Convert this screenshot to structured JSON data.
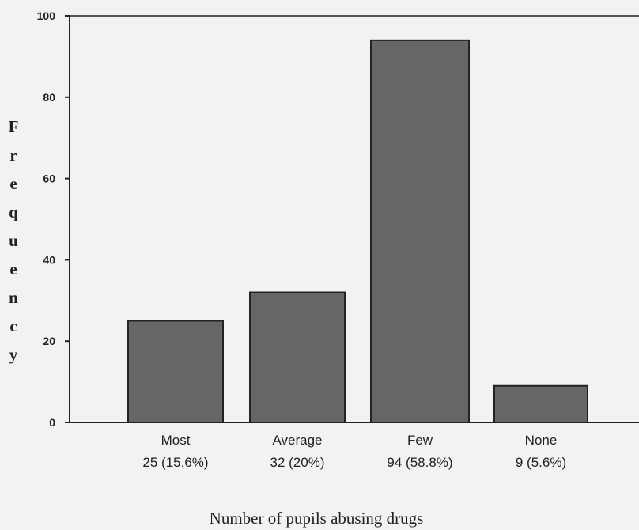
{
  "chart_data": {
    "type": "bar",
    "categories": [
      "Most",
      "Average",
      "Few",
      "None"
    ],
    "category_sublabels": [
      "25 (15.6%)",
      "32 (20%)",
      "94 (58.8%)",
      "9 (5.6%)"
    ],
    "values": [
      25,
      32,
      94,
      9
    ],
    "title": "",
    "xlabel": "Number of pupils abusing drugs",
    "ylabel": "Frequency",
    "ylim": [
      0,
      100
    ],
    "yticks": [
      "0",
      "20",
      "40",
      "60",
      "80",
      "100"
    ],
    "grid": false,
    "legend": "none",
    "colors": {
      "bar_fill": "#666666",
      "bar_stroke": "#222222",
      "axis": "#222222",
      "background": "#f2f2f2"
    }
  }
}
